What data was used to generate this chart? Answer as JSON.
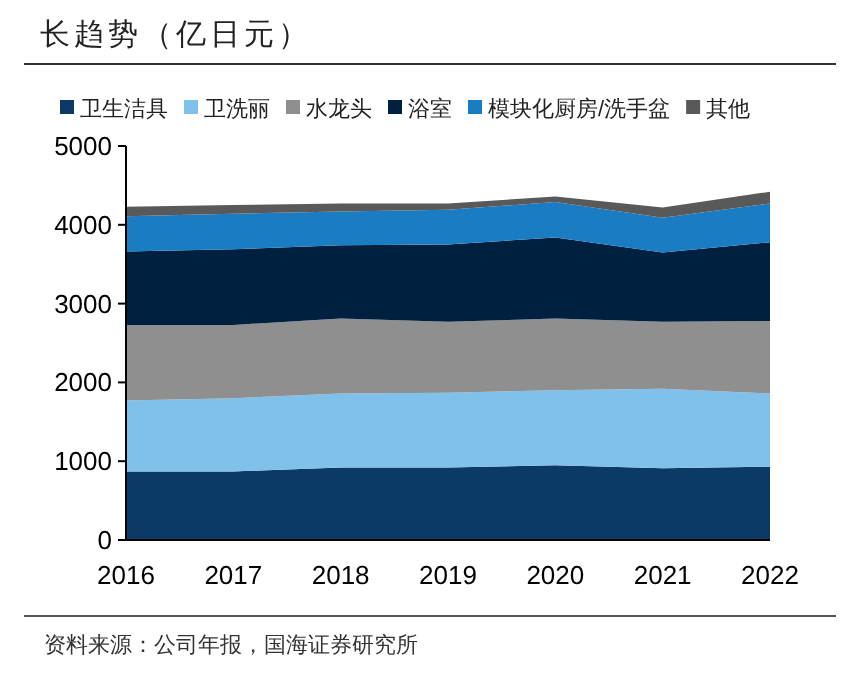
{
  "chart_data": {
    "type": "area",
    "stacked": true,
    "title": "长趋势（亿日元）",
    "categories": [
      "2016",
      "2017",
      "2018",
      "2019",
      "2020",
      "2021",
      "2022"
    ],
    "series": [
      {
        "name": "卫生洁具",
        "color": "#0b3a66",
        "values": [
          870,
          870,
          920,
          920,
          950,
          910,
          930
        ]
      },
      {
        "name": "卫洗丽",
        "color": "#7fc1ea",
        "values": [
          900,
          930,
          940,
          950,
          950,
          1010,
          930
        ]
      },
      {
        "name": "水龙头",
        "color": "#8f8f8f",
        "values": [
          960,
          930,
          950,
          900,
          910,
          850,
          920
        ]
      },
      {
        "name": "浴室",
        "color": "#00203f",
        "values": [
          930,
          960,
          930,
          980,
          1030,
          880,
          1000
        ]
      },
      {
        "name": "模块化厨房/洗手盆",
        "color": "#1a7dc4",
        "values": [
          450,
          450,
          430,
          440,
          450,
          440,
          490
        ]
      },
      {
        "name": "其他",
        "color": "#595959",
        "values": [
          120,
          110,
          100,
          80,
          70,
          130,
          150
        ]
      }
    ],
    "ylim": [
      0,
      5000
    ],
    "yticks": [
      0,
      1000,
      2000,
      3000,
      4000,
      5000
    ],
    "grid": false,
    "legend": "top",
    "annotations": [
      "资料来源：公司年报，国海证券研究所"
    ]
  }
}
